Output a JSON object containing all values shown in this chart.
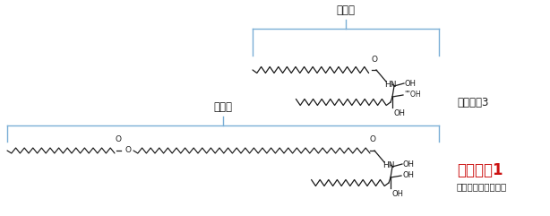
{
  "background_color": "#ffffff",
  "label_fatty_acid_top": "脂肪酸",
  "label_fatty_acid_bottom": "脂肪酸",
  "label_ceramide3": "セラミド3",
  "label_ceramide1": "セラミド1",
  "label_ceramide1_sub": "（アシルセラミド）",
  "bracket_color": "#7aaed6",
  "structure_color": "#1a1a1a",
  "ceramide1_label_color": "#cc1111",
  "label_color": "#1a1a1a",
  "font_size_label": 8.5,
  "font_size_ceramide1": 12,
  "font_size_ceramide1_sub": 7.5,
  "font_size_ceramide3": 8.5,
  "fig_width": 6.14,
  "fig_height": 2.41,
  "dpi": 100
}
